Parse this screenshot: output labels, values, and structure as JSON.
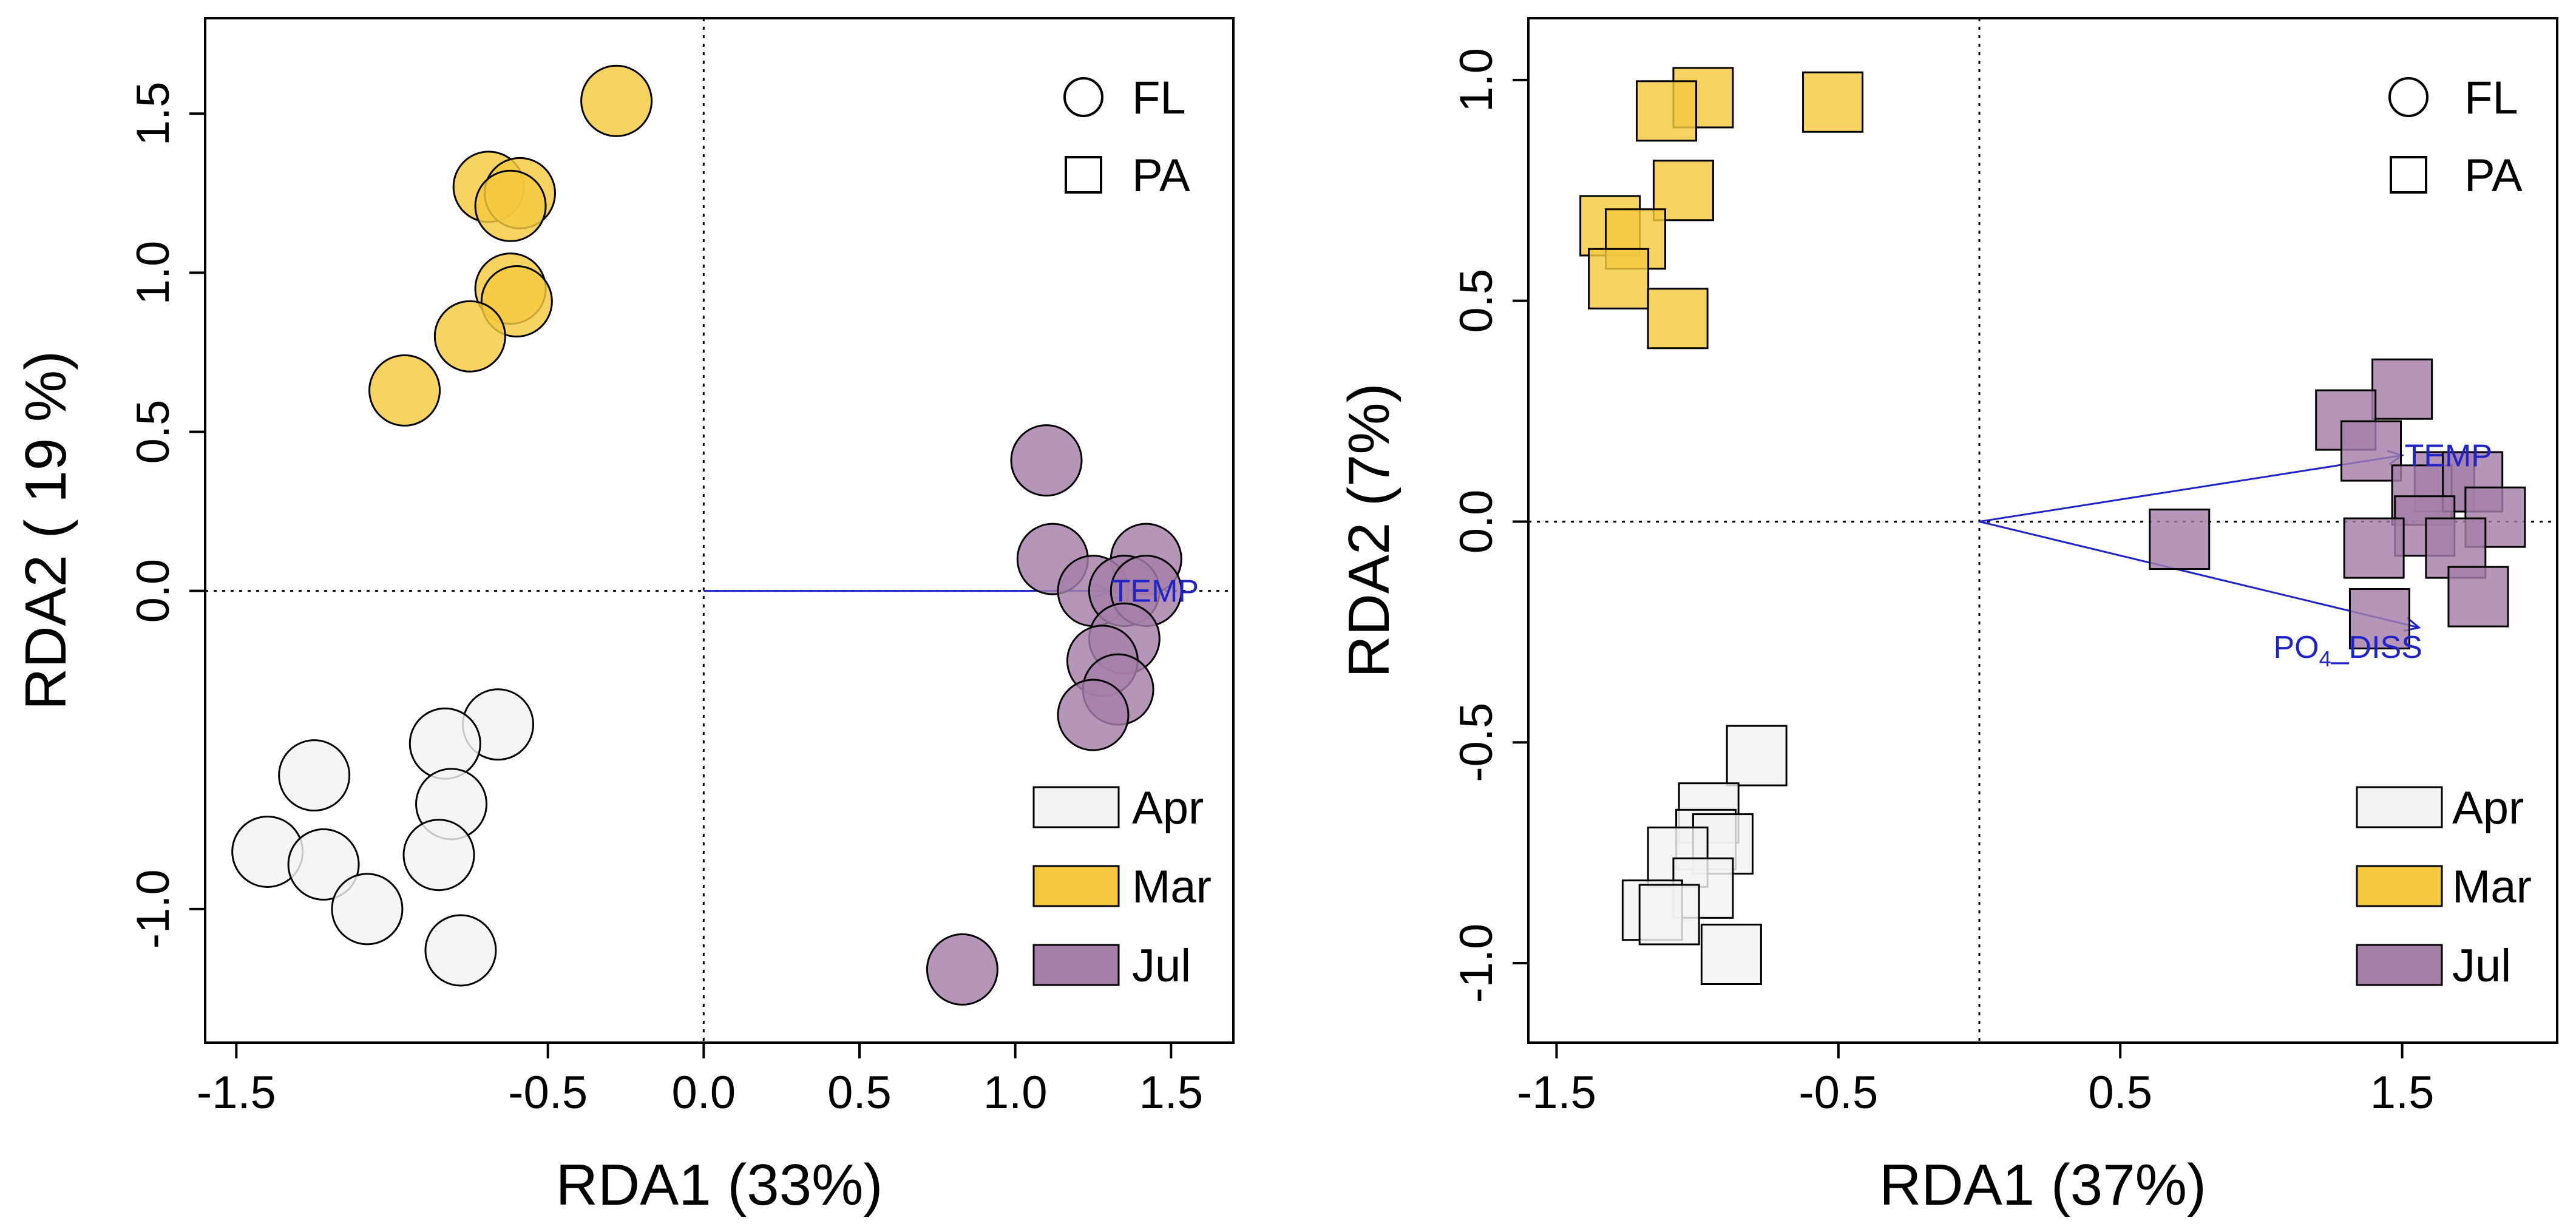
{
  "chart_data": [
    {
      "type": "scatter",
      "xlabel": "RDA1 (33%)",
      "ylabel": "RDA2 ( 19 %)",
      "xlim": [
        -1.6,
        1.7
      ],
      "ylim": [
        -1.42,
        1.8
      ],
      "xticks": [
        -1.5,
        -0.5,
        0.0,
        0.5,
        1.0,
        1.5
      ],
      "xtick_labels": [
        "-1.5",
        "-0.5",
        "0.0",
        "0.5",
        "1.0",
        "1.5"
      ],
      "yticks": [
        -1.0,
        0.0,
        0.5,
        1.0,
        1.5
      ],
      "ytick_labels": [
        "-1.0",
        "0.0",
        "0.5",
        "1.0",
        "1.5"
      ],
      "reference_lines": {
        "x": 0,
        "y": 0,
        "style": "dotted"
      },
      "shape_legend": [
        {
          "label": "FL",
          "shape": "circle"
        },
        {
          "label": "PA",
          "shape": "square"
        }
      ],
      "color_legend": [
        {
          "label": "Apr",
          "color": "#f2f4f3"
        },
        {
          "label": "Mar",
          "color": "#f5c93f"
        },
        {
          "label": "Jul",
          "color": "#a57fa8"
        }
      ],
      "shape_legend_position": "top-right",
      "color_legend_position": "bottom-right",
      "series": [
        {
          "name": "Mar",
          "shape": "circle",
          "color": "#f5c93f",
          "x": [
            -0.28,
            -0.69,
            -0.59,
            -0.62,
            -0.62,
            -0.6,
            -0.75,
            -0.96
          ],
          "y": [
            1.54,
            1.27,
            1.25,
            1.21,
            0.95,
            0.91,
            0.8,
            0.63
          ]
        },
        {
          "name": "Jul",
          "shape": "circle",
          "color": "#a57fa8",
          "x": [
            1.1,
            1.12,
            1.42,
            1.25,
            1.35,
            1.42,
            1.35,
            1.28,
            1.33,
            1.25,
            0.83
          ],
          "y": [
            0.41,
            0.1,
            0.1,
            0.0,
            0.0,
            0.0,
            -0.15,
            -0.22,
            -0.31,
            -0.39,
            -1.19
          ]
        },
        {
          "name": "Apr",
          "shape": "circle",
          "color": "#f2f4f3",
          "x": [
            -0.66,
            -0.83,
            -1.25,
            -0.81,
            -1.4,
            -1.22,
            -0.85,
            -1.08,
            -0.78
          ],
          "y": [
            -0.42,
            -0.48,
            -0.58,
            -0.67,
            -0.82,
            -0.86,
            -0.83,
            -1.0,
            -1.13
          ]
        }
      ],
      "arrows": [
        {
          "label_main": "TEMP",
          "label_sub": "",
          "label_tail": "",
          "x": 1.3,
          "y": 0.0
        }
      ]
    },
    {
      "type": "scatter",
      "xlabel": "RDA1 (37%)",
      "ylabel": "RDA2 (7%)",
      "xlim": [
        -1.6,
        2.05
      ],
      "ylim": [
        -1.18,
        1.14
      ],
      "xticks": [
        -1.5,
        -0.5,
        0.5,
        1.5
      ],
      "xtick_labels": [
        "-1.5",
        "-0.5",
        "0.5",
        "1.5"
      ],
      "yticks": [
        -1.0,
        -0.5,
        0.0,
        0.5,
        1.0
      ],
      "ytick_labels": [
        "-1.0",
        "-0.5",
        "0.0",
        "0.5",
        "1.0"
      ],
      "reference_lines": {
        "x": 0,
        "y": 0,
        "style": "dotted"
      },
      "shape_legend": [
        {
          "label": "FL",
          "shape": "circle"
        },
        {
          "label": "PA",
          "shape": "square"
        }
      ],
      "color_legend": [
        {
          "label": "Apr",
          "color": "#f2f4f3"
        },
        {
          "label": "Mar",
          "color": "#f5c93f"
        },
        {
          "label": "Jul",
          "color": "#a57fa8"
        }
      ],
      "shape_legend_position": "top-right",
      "color_legend_position": "bottom-right",
      "series": [
        {
          "name": "Mar",
          "shape": "square",
          "color": "#f5c93f",
          "x": [
            -0.98,
            -1.11,
            -0.52,
            -1.05,
            -1.31,
            -1.22,
            -1.28,
            -1.07
          ],
          "y": [
            0.96,
            0.93,
            0.95,
            0.75,
            0.67,
            0.64,
            0.55,
            0.46
          ]
        },
        {
          "name": "Jul",
          "shape": "square",
          "color": "#a57fa8",
          "x": [
            1.5,
            1.3,
            1.39,
            1.65,
            1.57,
            1.75,
            1.83,
            1.58,
            1.69,
            1.4,
            0.71,
            1.77,
            1.42
          ],
          "y": [
            0.3,
            0.23,
            0.16,
            0.09,
            0.06,
            0.09,
            0.01,
            -0.01,
            -0.06,
            -0.06,
            -0.04,
            -0.17,
            -0.22
          ]
        },
        {
          "name": "Apr",
          "shape": "square",
          "color": "#f2f4f3",
          "x": [
            -0.79,
            -0.96,
            -0.97,
            -0.91,
            -1.07,
            -0.98,
            -1.16,
            -1.1,
            -0.88
          ],
          "y": [
            -0.53,
            -0.66,
            -0.72,
            -0.73,
            -0.76,
            -0.83,
            -0.88,
            -0.89,
            -0.98
          ]
        }
      ],
      "arrows": [
        {
          "label_main": "TEMP",
          "label_sub": "",
          "label_tail": "",
          "x": 1.5,
          "y": 0.15
        },
        {
          "label_main": "PO",
          "label_sub": "4",
          "label_tail": "_DISS",
          "x": 1.56,
          "y": -0.24
        }
      ]
    }
  ]
}
